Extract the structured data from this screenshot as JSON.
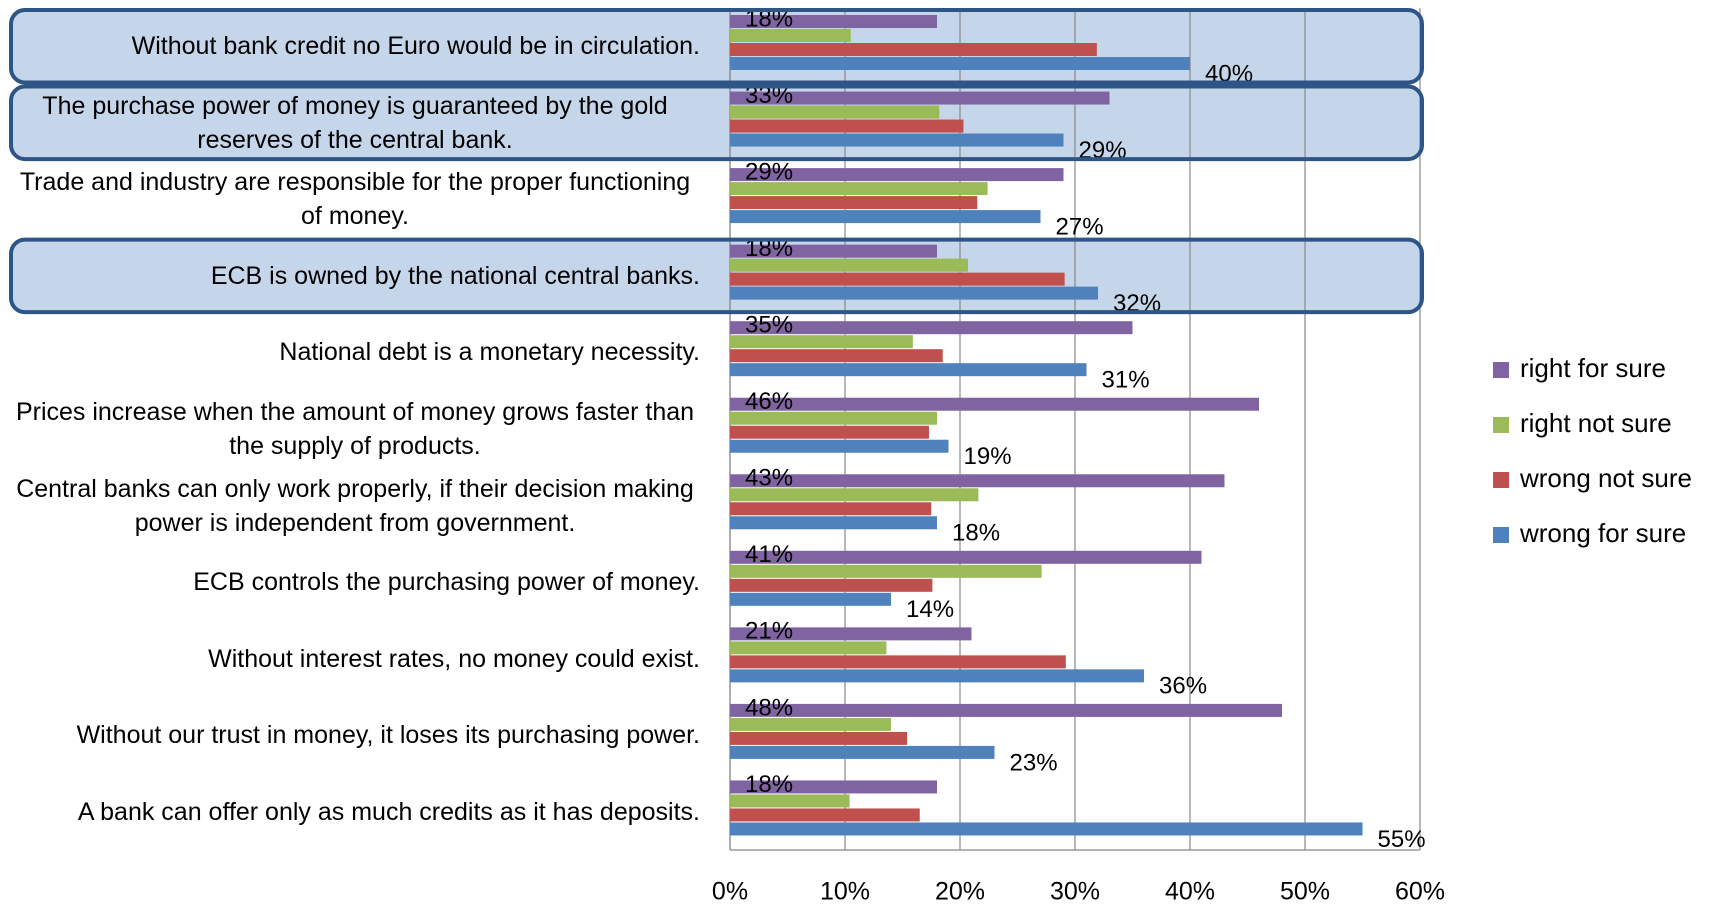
{
  "chart_data": {
    "type": "hbar",
    "categories": [
      "Without bank credit no Euro would be in circulation.",
      "The purchase power of money is guaranteed by the gold reserves of the central bank.",
      "Trade and industry are responsible for the proper functioning of money.",
      "ECB is owned by the national central banks.",
      "National debt is a monetary necessity.",
      "Prices increase when the amount of money grows faster than the supply of products.",
      "Central banks can only work properly, if their decision making power is independent from government.",
      "ECB controls the purchasing power of money.",
      "Without interest rates, no money could exist.",
      "Without our trust in money, it loses its purchasing power.",
      "A bank can offer only as much credits as it has deposits."
    ],
    "series": [
      {
        "name": "right for sure",
        "color": "#8064a2",
        "values": [
          18,
          33,
          29,
          18,
          35,
          46,
          43,
          41,
          21,
          48,
          18
        ],
        "value_labels": [
          "18%",
          "33%",
          "29%",
          "18%",
          "35%",
          "46%",
          "43%",
          "41%",
          "21%",
          "48%",
          "18%"
        ]
      },
      {
        "name": "right not sure",
        "color": "#9bbb59",
        "values": [
          10.5,
          18.2,
          22.4,
          20.7,
          15.9,
          18,
          21.6,
          27.1,
          13.6,
          14,
          10.4
        ]
      },
      {
        "name": "wrong not sure",
        "color": "#c0504d",
        "values": [
          31.9,
          20.3,
          21.5,
          29.1,
          18.5,
          17.3,
          17.5,
          17.6,
          29.2,
          15.4,
          16.5
        ]
      },
      {
        "name": "wrong for sure",
        "color": "#4f81bd",
        "values": [
          40,
          29,
          27,
          32,
          31,
          19,
          18,
          14,
          36,
          23,
          55
        ],
        "value_labels": [
          "40%",
          "29%",
          "27%",
          "32%",
          "31%",
          "19%",
          "18%",
          "14%",
          "36%",
          "23%",
          "55%"
        ]
      }
    ],
    "xlim": [
      0,
      60
    ],
    "xticks": [
      {
        "value": 0,
        "label": "0%"
      },
      {
        "value": 10,
        "label": "10%"
      },
      {
        "value": 20,
        "label": "20%"
      },
      {
        "value": 30,
        "label": "30%"
      },
      {
        "value": 40,
        "label": "40%"
      },
      {
        "value": 50,
        "label": "50%"
      },
      {
        "value": 60,
        "label": "60%"
      }
    ],
    "grid": true,
    "legend": "right",
    "highlight_categories": [
      0,
      1,
      3
    ]
  }
}
